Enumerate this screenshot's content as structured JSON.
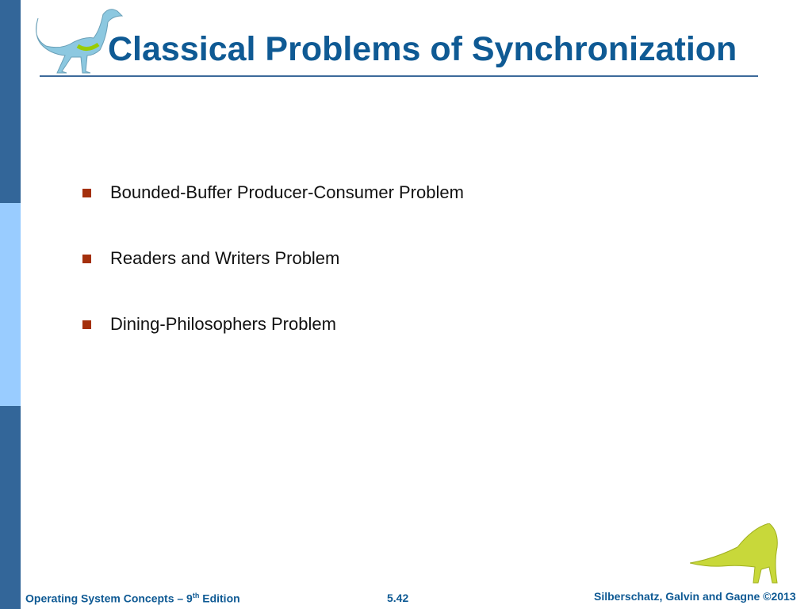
{
  "title": "Classical Problems of Synchronization",
  "bullets": [
    "Bounded-Buffer Producer-Consumer Problem",
    "Readers and Writers Problem",
    "Dining-Philosophers Problem"
  ],
  "footer": {
    "book_prefix": "Operating System Concepts – 9",
    "book_sup": "th",
    "book_suffix": " Edition",
    "page": "5.42",
    "copyright": "Silberschatz, Galvin and Gagne ©2013"
  },
  "colors": {
    "title": "#0f5a94",
    "bullet": "#a4300c",
    "sidebar_dark": "#336699",
    "sidebar_light": "#99ccff"
  }
}
